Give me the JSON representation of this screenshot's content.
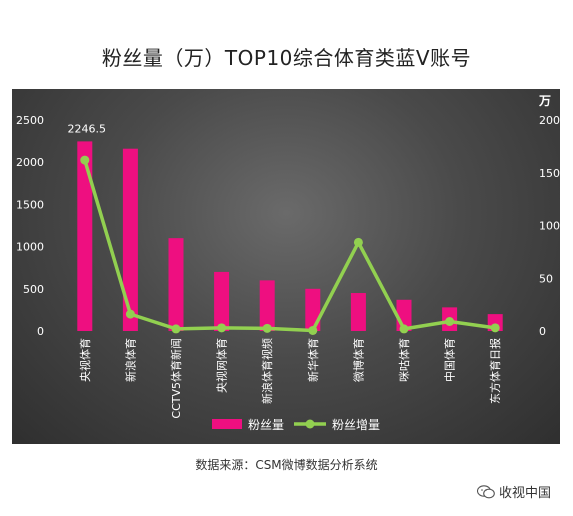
{
  "title": "粉丝量（万）TOP10综合体育类蓝V账号",
  "source_note": "数据来源：CSM微博数据分析系统",
  "watermark": "收视中国",
  "colors": {
    "bar": "#ee0f80",
    "line": "#92d050",
    "text": "#ffffff"
  },
  "chart_data": {
    "type": "bar",
    "categories": [
      "央视体育",
      "新浪体育",
      "CCTV5体育新闻",
      "央视网体育",
      "新浪体育视频",
      "新华体育",
      "微博体育",
      "咪咕体育",
      "中国体育",
      "东方体育日报"
    ],
    "series": [
      {
        "name": "粉丝量",
        "type": "bar",
        "axis": "left",
        "values": [
          2246.5,
          2160,
          1100,
          700,
          600,
          500,
          450,
          370,
          280,
          200
        ]
      },
      {
        "name": "粉丝增量",
        "type": "line",
        "axis": "right",
        "values": [
          162,
          16,
          2,
          3,
          2.5,
          0.5,
          84,
          2,
          9,
          3
        ]
      }
    ],
    "data_labels": [
      {
        "series": 0,
        "index": 0,
        "text": "2246.5"
      }
    ],
    "y_left": {
      "min": 0,
      "max": 2500,
      "ticks": [
        0,
        500,
        1000,
        1500,
        2000,
        2500
      ]
    },
    "y_right": {
      "min": 0,
      "max": 200,
      "ticks": [
        0,
        50,
        100,
        150,
        200
      ],
      "unit": "万"
    },
    "legend": {
      "position": "bottom"
    }
  }
}
